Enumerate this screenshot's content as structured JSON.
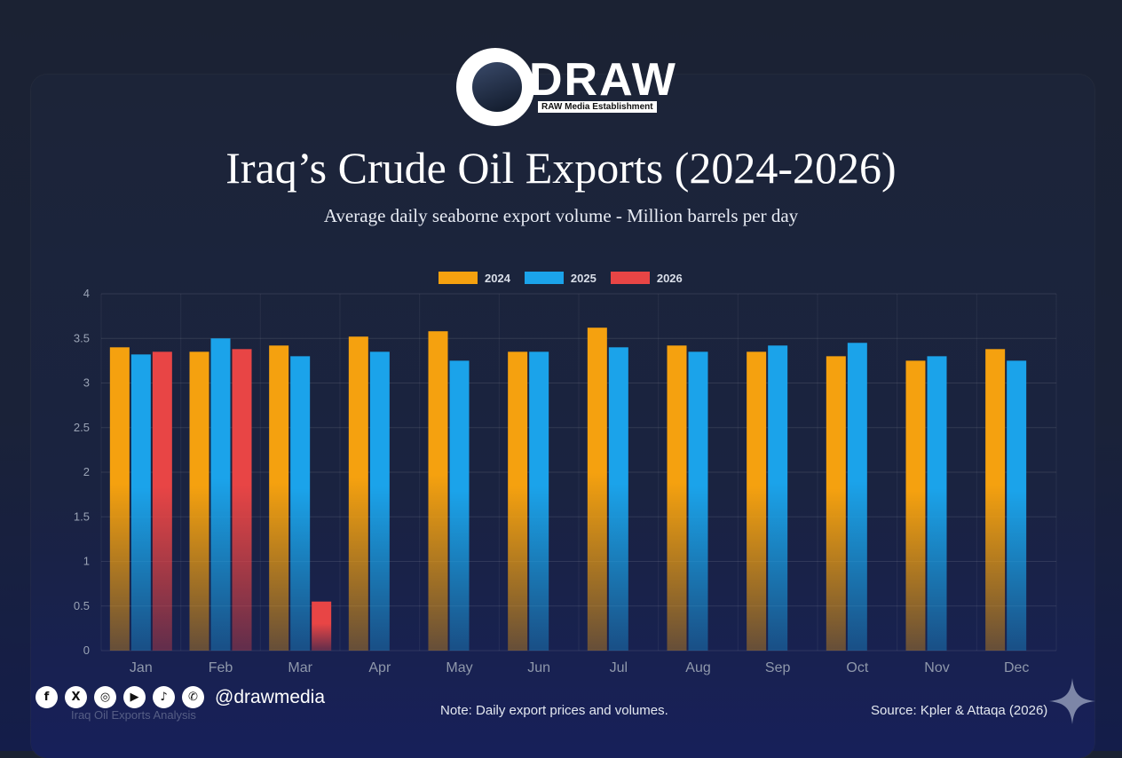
{
  "brand": {
    "name": "DRAW",
    "tagline": "RAW Media Establishment"
  },
  "footer": {
    "handle": "@drawmedia",
    "faint_text": "Iraq Oil Exports Analysis",
    "note": "Note: Daily export prices and volumes.",
    "source": "Source: Kpler & Attaqa (2026)",
    "social_icons": [
      "facebook-icon",
      "x-icon",
      "instagram-icon",
      "youtube-icon",
      "tiktok-icon",
      "whatsapp-icon"
    ]
  },
  "chart_data": {
    "type": "bar",
    "title": "Iraq’s Crude Oil Exports (2024-2026)",
    "subtitle": "Average daily seaborne export volume - Million barrels per day",
    "xlabel": "",
    "ylabel": "",
    "ylim": [
      0,
      4
    ],
    "yticks": [
      "0",
      "0.5",
      "1",
      "1.5",
      "2",
      "2.5",
      "3",
      "3.5",
      "4"
    ],
    "grid": true,
    "legend_position": "top-center",
    "categories": [
      "Jan",
      "Feb",
      "Mar",
      "Apr",
      "May",
      "Jun",
      "Jul",
      "Aug",
      "Sep",
      "Oct",
      "Nov",
      "Dec"
    ],
    "series": [
      {
        "name": "2024",
        "color": "#f5a10f",
        "values": [
          3.4,
          3.35,
          3.42,
          3.52,
          3.58,
          3.35,
          3.62,
          3.42,
          3.35,
          3.3,
          3.25,
          3.38
        ]
      },
      {
        "name": "2025",
        "color": "#1ba3ea",
        "values": [
          3.32,
          3.5,
          3.3,
          3.35,
          3.25,
          3.35,
          3.4,
          3.35,
          3.42,
          3.45,
          3.3,
          3.25
        ]
      },
      {
        "name": "2026",
        "color": "#e84545",
        "values": [
          3.35,
          3.38,
          0.55,
          null,
          null,
          null,
          null,
          null,
          null,
          null,
          null,
          null
        ]
      }
    ]
  }
}
